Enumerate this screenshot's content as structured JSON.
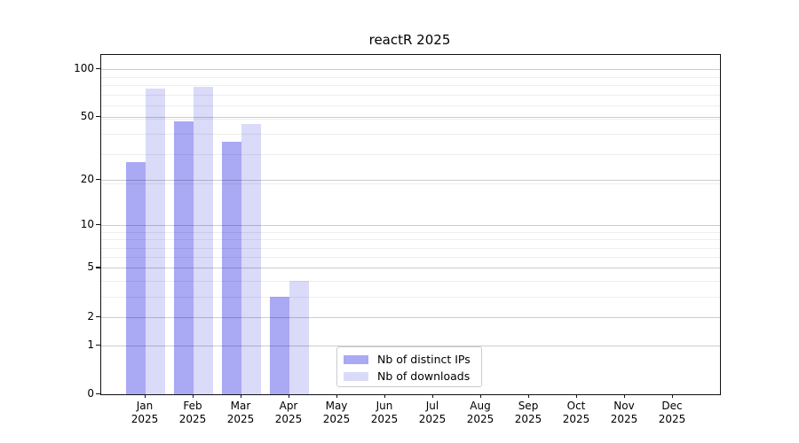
{
  "chart_data": {
    "type": "bar",
    "title": "reactR 2025",
    "categories": [
      "Jan",
      "Feb",
      "Mar",
      "Apr",
      "May",
      "Jun",
      "Jul",
      "Aug",
      "Sep",
      "Oct",
      "Nov",
      "Dec"
    ],
    "category_year": "2025",
    "series": [
      {
        "name": "Nb of distinct IPs",
        "color": "#a9a9f4",
        "values": [
          26,
          47,
          35,
          3,
          0,
          0,
          0,
          0,
          0,
          0,
          0,
          0
        ]
      },
      {
        "name": "Nb of downloads",
        "color": "#dadaf9",
        "values": [
          75,
          77,
          45,
          4,
          0,
          0,
          0,
          0,
          0,
          0,
          0,
          0
        ]
      }
    ],
    "y_axis": {
      "scale": "log1p",
      "major_ticks": [
        0,
        1,
        2,
        5,
        10,
        20,
        50,
        100
      ],
      "minor_gridlines": [
        3,
        4,
        6,
        7,
        8,
        9,
        19,
        29,
        39,
        49,
        59,
        69,
        79,
        89
      ],
      "max": 122
    },
    "x_axis": {
      "label_line2": "2025"
    },
    "grid": {
      "major_color": "#cccccc",
      "minor_color": "#ededed"
    },
    "legend": {
      "position": "bottom-center",
      "border_color": "#cccccc",
      "background": "#ffffff"
    }
  }
}
